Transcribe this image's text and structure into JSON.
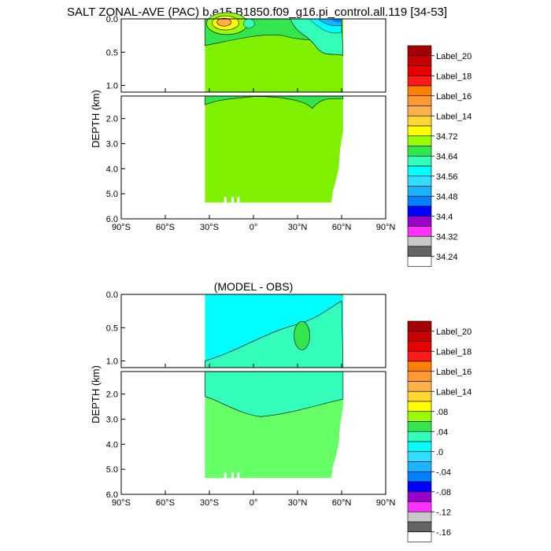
{
  "chart_data": [
    {
      "type": "heatmap",
      "title": "SALT ZONAL-AVE (PAC) b.e15.B1850.f09_g16.pi_control.all.119 [34-53]",
      "ylabel": "DEPTH (km)",
      "xlabel": "",
      "xlim": [
        -90,
        90
      ],
      "upper_ylim": [
        0.0,
        1.1
      ],
      "lower_ylim": [
        1.1,
        6.0
      ],
      "x_ticks": [
        "90°S",
        "60°S",
        "30°S",
        "0°",
        "30°N",
        "60°N",
        "90°N"
      ],
      "upper_y_ticks": [
        "0.0",
        "0.5",
        "1.0"
      ],
      "lower_y_ticks": [
        "2.0",
        "3.0",
        "4.0",
        "5.0",
        "6.0"
      ],
      "colorbar_labels": [
        "Label_20",
        "Label_18",
        "Label_16",
        "Label_14",
        "34.72",
        "34.64",
        "34.56",
        "34.48",
        "34.4",
        "34.32",
        "34.24"
      ],
      "dominant_deep_value": 34.68,
      "data_extent": {
        "lat_min": -33,
        "lat_max": 61,
        "max_depth_km": 5.35
      }
    },
    {
      "type": "heatmap",
      "title": "(MODEL - OBS)",
      "ylabel": "DEPTH (km)",
      "xlabel": "",
      "xlim": [
        -90,
        90
      ],
      "upper_ylim": [
        0.0,
        1.1
      ],
      "lower_ylim": [
        1.1,
        6.0
      ],
      "x_ticks": [
        "90°S",
        "60°S",
        "30°S",
        "0°",
        "30°N",
        "60°N",
        "90°N"
      ],
      "upper_y_ticks": [
        "0.0",
        "0.5",
        "1.0"
      ],
      "lower_y_ticks": [
        "2.0",
        "3.0",
        "4.0",
        "5.0",
        "6.0"
      ],
      "colorbar_labels": [
        "Label_20",
        "Label_18",
        "Label_16",
        "Label_14",
        ".08",
        ".04",
        ".0",
        "-.04",
        "-.08",
        "-.12",
        "-.16"
      ],
      "dominant_deep_value": 0.06,
      "data_extent": {
        "lat_min": -33,
        "lat_max": 61,
        "max_depth_km": 5.35
      }
    }
  ],
  "colors": {
    "colorbar": [
      "#a50000",
      "#c80000",
      "#e60000",
      "#ff1a1a",
      "#ff8000",
      "#ff9933",
      "#ffb04d",
      "#ffd633",
      "#ffff00",
      "#99ff00",
      "#33e64d",
      "#33ffbb",
      "#00ffff",
      "#33ddff",
      "#1ab3ff",
      "#0080ff",
      "#0000ff",
      "#9900cc",
      "#ff33ff",
      "#c8c8c8",
      "#646464",
      "#ffffff"
    ],
    "salt_fill": "#7ef000",
    "diff_fill": "#00ffff",
    "diff_deep": "#66ff66"
  }
}
